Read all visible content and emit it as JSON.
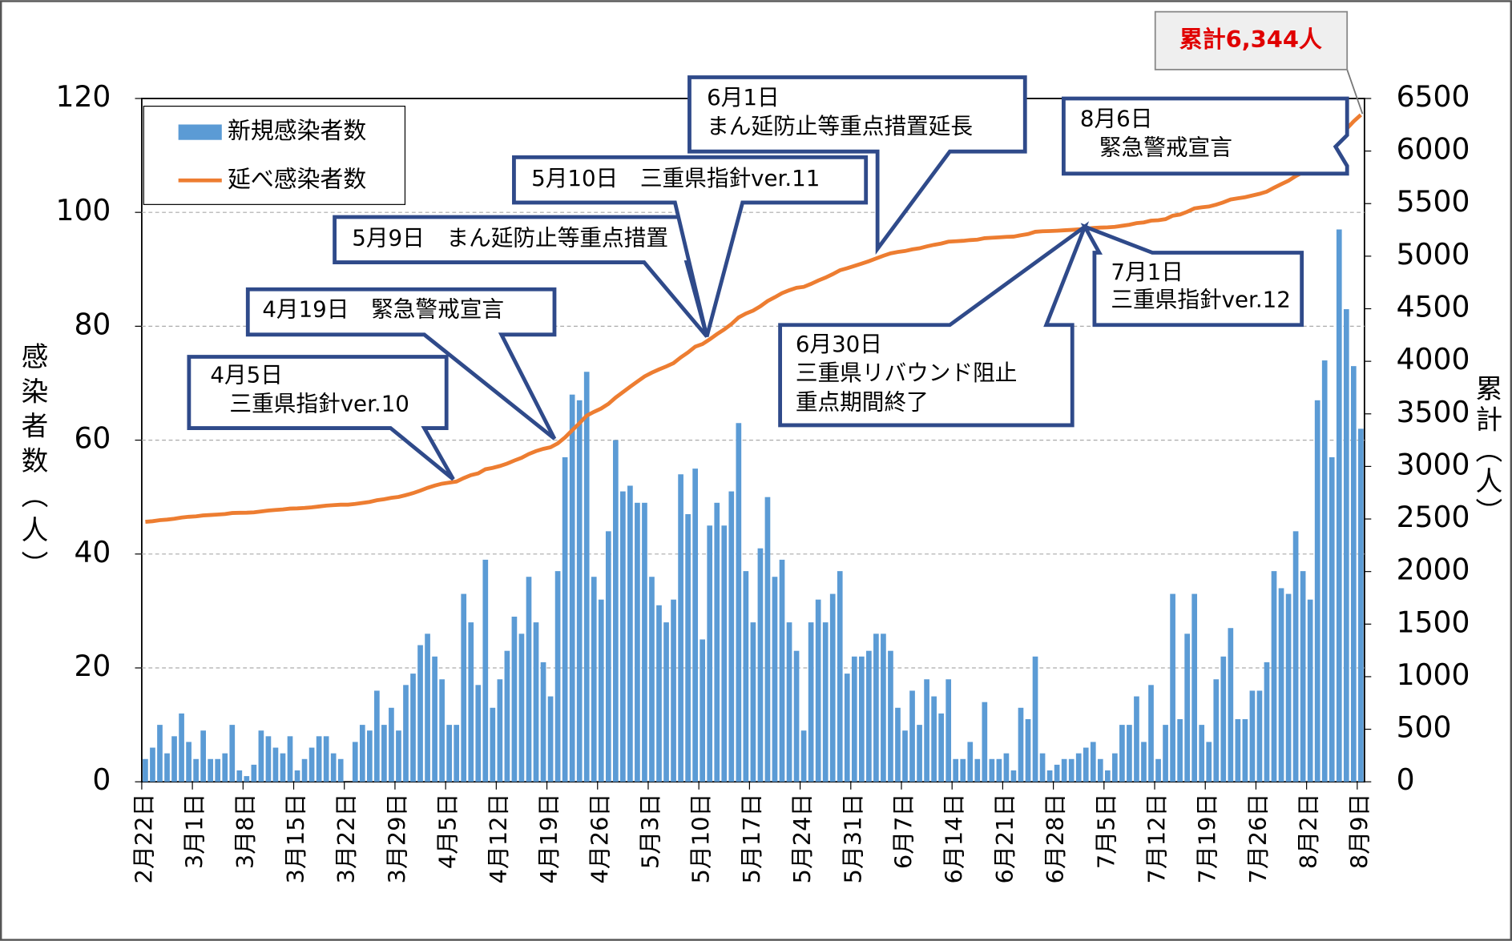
{
  "chart_data": {
    "type": "bar_line",
    "y_label": "感染者数（人）",
    "y2_label": "累計（人）",
    "categories": [
      "2月22日",
      null,
      null,
      null,
      null,
      null,
      null,
      "3月1日",
      null,
      null,
      null,
      null,
      null,
      null,
      "3月8日",
      null,
      null,
      null,
      null,
      null,
      null,
      "3月15日",
      null,
      null,
      null,
      null,
      null,
      null,
      "3月22日",
      null,
      null,
      null,
      null,
      null,
      null,
      "3月29日",
      null,
      null,
      null,
      null,
      null,
      null,
      "4月5日",
      null,
      null,
      null,
      null,
      null,
      null,
      "4月12日",
      null,
      null,
      null,
      null,
      null,
      null,
      "4月19日",
      null,
      null,
      null,
      null,
      null,
      null,
      "4月26日",
      null,
      null,
      null,
      null,
      null,
      null,
      "5月3日",
      null,
      null,
      null,
      null,
      null,
      null,
      "5月10日",
      null,
      null,
      null,
      null,
      null,
      null,
      "5月17日",
      null,
      null,
      null,
      null,
      null,
      null,
      "5月24日",
      null,
      null,
      null,
      null,
      null,
      null,
      "5月31日",
      null,
      null,
      null,
      null,
      null,
      null,
      "6月7日",
      null,
      null,
      null,
      null,
      null,
      null,
      "6月14日",
      null,
      null,
      null,
      null,
      null,
      null,
      "6月21日",
      null,
      null,
      null,
      null,
      null,
      null,
      "6月28日",
      null,
      null,
      null,
      null,
      null,
      null,
      "7月5日",
      null,
      null,
      null,
      null,
      null,
      null,
      "7月12日",
      null,
      null,
      null,
      null,
      null,
      null,
      "7月19日",
      null,
      null,
      null,
      null,
      null,
      null,
      "7月26日",
      null,
      null,
      null,
      null,
      null,
      null,
      "8月2日",
      null,
      null,
      null,
      null,
      null,
      null,
      "8月9日"
    ],
    "series": [
      {
        "name": "新規感染者数",
        "type": "bar",
        "color": "#5b9bd5",
        "values": [
          4,
          6,
          10,
          5,
          8,
          12,
          7,
          4,
          9,
          4,
          4,
          5,
          10,
          2,
          1,
          3,
          9,
          8,
          6,
          5,
          8,
          2,
          4,
          6,
          8,
          8,
          5,
          4,
          0,
          7,
          10,
          9,
          16,
          10,
          13,
          9,
          17,
          19,
          24,
          26,
          22,
          18,
          10,
          10,
          33,
          28,
          17,
          39,
          13,
          18,
          23,
          29,
          26,
          36,
          28,
          21,
          15,
          37,
          57,
          68,
          67,
          72,
          36,
          32,
          44,
          60,
          51,
          52,
          49,
          49,
          36,
          31,
          28,
          32,
          54,
          47,
          55,
          25,
          45,
          49,
          45,
          51,
          63,
          37,
          28,
          41,
          50,
          36,
          39,
          28,
          23,
          9,
          28,
          32,
          28,
          33,
          37,
          19,
          22,
          22,
          23,
          26,
          26,
          23,
          13,
          9,
          16,
          10,
          18,
          15,
          12,
          18,
          4,
          4,
          7,
          4,
          14,
          4,
          4,
          5,
          2,
          13,
          11,
          22,
          5,
          2,
          3,
          4,
          4,
          5,
          6,
          7,
          4,
          2,
          5,
          10,
          10,
          15,
          7,
          17,
          4,
          10,
          33,
          11,
          26,
          33,
          10,
          7,
          18,
          22,
          27,
          11,
          11,
          16,
          16,
          21,
          37,
          34,
          33,
          44,
          37,
          32,
          67,
          74,
          57,
          97,
          83,
          73,
          62
        ]
      },
      {
        "name": "延べ感染者数",
        "type": "line",
        "axis": "y2",
        "color": "#ed7d31",
        "values": [
          2473,
          2479,
          2489,
          2494,
          2502,
          2514,
          2521,
          2525,
          2534,
          2538,
          2542,
          2547,
          2557,
          2559,
          2560,
          2563,
          2572,
          2580,
          2586,
          2591,
          2599,
          2601,
          2605,
          2611,
          2619,
          2627,
          2632,
          2636,
          2636,
          2643,
          2653,
          2662,
          2678,
          2688,
          2701,
          2710,
          2727,
          2746,
          2770,
          2796,
          2818,
          2836,
          2846,
          2856,
          2889,
          2917,
          2934,
          2973,
          2986,
          3004,
          3027,
          3056,
          3082,
          3118,
          3146,
          3167,
          3182,
          3219,
          3276,
          3344,
          3411,
          3483,
          3519,
          3551,
          3595,
          3655,
          3706,
          3758,
          3807,
          3856,
          3892,
          3923,
          3951,
          3983,
          4037,
          4084,
          4139,
          4164,
          4209,
          4258,
          4303,
          4354,
          4417,
          4454,
          4482,
          4523,
          4573,
          4609,
          4648,
          4676,
          4699,
          4708,
          4736,
          4768,
          4796,
          4829,
          4866,
          4885,
          4907,
          4929,
          4952,
          4978,
          5004,
          5027,
          5040,
          5049,
          5065,
          5075,
          5093,
          5108,
          5120,
          5138,
          5142,
          5146,
          5153,
          5157,
          5171,
          5175,
          5179,
          5184,
          5186,
          5199,
          5210,
          5232,
          5237,
          5239,
          5242,
          5246,
          5250,
          5255,
          5261,
          5268,
          5272,
          5274,
          5279,
          5289,
          5299,
          5314,
          5321,
          5338,
          5342,
          5352,
          5385,
          5396,
          5422,
          5455,
          5465,
          5472,
          5490,
          5512,
          5539,
          5550,
          5561,
          5577,
          5593,
          5614,
          5651,
          5685,
          5718,
          5762,
          5799,
          5831,
          5898,
          5972,
          6029,
          6126,
          6209,
          6282,
          6344
        ]
      }
    ],
    "ylim": [
      0,
      120
    ],
    "yticks": [
      0,
      20,
      40,
      60,
      80,
      100,
      120
    ],
    "y2lim": [
      0,
      6500
    ],
    "y2ticks": [
      0,
      500,
      1000,
      1500,
      2000,
      2500,
      3000,
      3500,
      4000,
      4500,
      5000,
      5500,
      6000,
      6500
    ],
    "grid": true,
    "legend": "upper left",
    "annotations": [
      {
        "lines": [
          "4月5日",
          "三重県指針ver.10"
        ]
      },
      {
        "lines": [
          "4月19日　緊急警戒宣言"
        ]
      },
      {
        "lines": [
          "5月9日　まん延防止等重点措置"
        ]
      },
      {
        "lines": [
          "5月10日　三重県指針ver.11"
        ]
      },
      {
        "lines": [
          "6月1日",
          "まん延防止等重点措置延長"
        ]
      },
      {
        "lines": [
          "6月30日",
          "三重県リバウンド阻止",
          "重点期間終了"
        ]
      },
      {
        "lines": [
          "7月1日",
          "三重県指針ver.12"
        ]
      },
      {
        "lines": [
          "8月6日",
          "緊急警戒宣言"
        ]
      },
      {
        "lines": [
          "累計6,344人"
        ]
      }
    ]
  }
}
